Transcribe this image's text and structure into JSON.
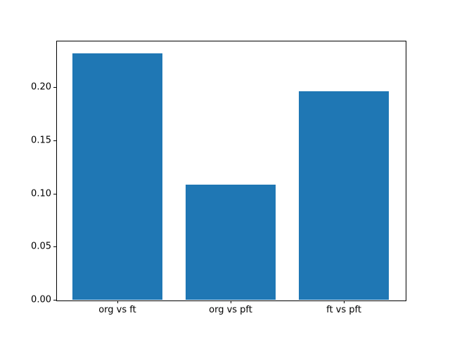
{
  "chart_data": {
    "type": "bar",
    "categories": [
      "org vs ft",
      "org vs pft",
      "ft vs pft"
    ],
    "values": [
      0.232,
      0.108,
      0.196
    ],
    "title": "",
    "xlabel": "",
    "ylabel": "",
    "ylim": [
      0,
      0.2436
    ],
    "xlim": [
      -0.54,
      2.54
    ],
    "yticks": [
      0.0,
      0.05,
      0.1,
      0.15,
      0.2
    ],
    "ytick_labels": [
      "0.00",
      "0.05",
      "0.10",
      "0.15",
      "0.20"
    ],
    "bar_width_fraction": 0.8,
    "bar_color": "#1f77b4",
    "spine_color": "#000000",
    "background_color": "#ffffff",
    "grid": false,
    "legend": null
  }
}
